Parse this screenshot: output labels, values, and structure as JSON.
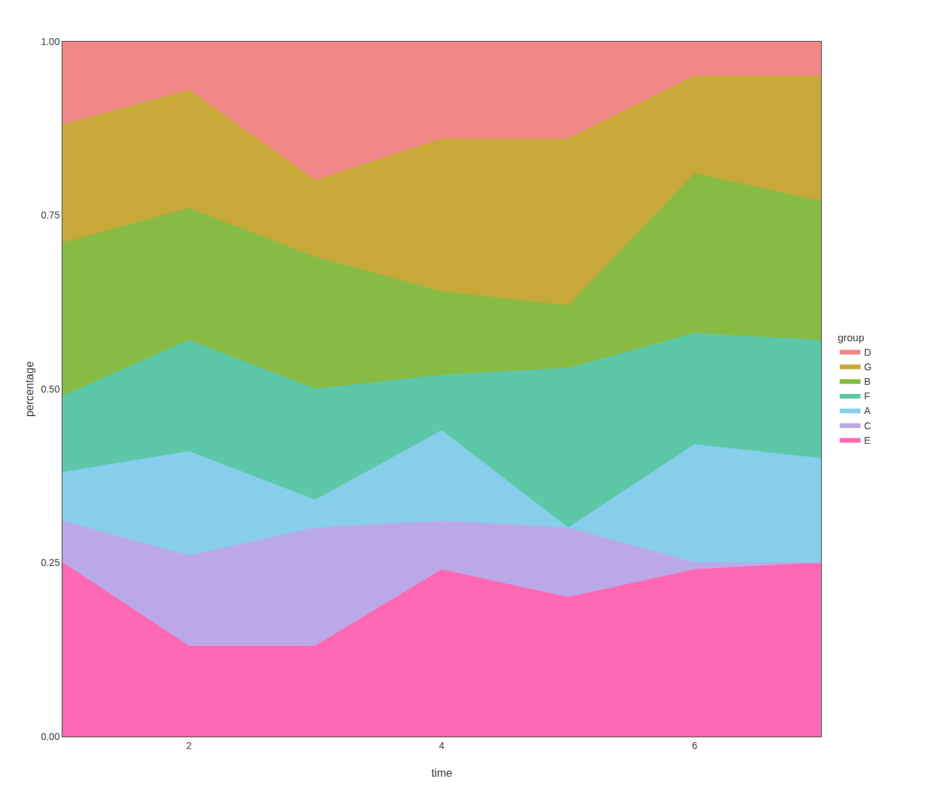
{
  "chart_data": {
    "type": "area",
    "stacked": true,
    "x_label": "time",
    "y_label": "percentage",
    "legend_title": "group",
    "x": [
      1,
      2,
      3,
      4,
      5,
      6,
      7
    ],
    "series": [
      {
        "name": "E",
        "color": "#FF69B4",
        "values": [
          0.25,
          0.13,
          0.13,
          0.24,
          0.2,
          0.24,
          0.25
        ]
      },
      {
        "name": "C",
        "color": "#BBA8E8",
        "values": [
          0.06,
          0.13,
          0.17,
          0.07,
          0.1,
          0.01,
          0.0
        ]
      },
      {
        "name": "A",
        "color": "#87CEEB",
        "values": [
          0.07,
          0.15,
          0.04,
          0.13,
          0.0,
          0.17,
          0.15
        ]
      },
      {
        "name": "F",
        "color": "#5DC8A8",
        "values": [
          0.11,
          0.16,
          0.16,
          0.08,
          0.23,
          0.16,
          0.17
        ]
      },
      {
        "name": "B",
        "color": "#88BB44",
        "values": [
          0.22,
          0.19,
          0.19,
          0.12,
          0.09,
          0.23,
          0.2
        ]
      },
      {
        "name": "G",
        "color": "#C8A838",
        "values": [
          0.17,
          0.17,
          0.11,
          0.22,
          0.24,
          0.14,
          0.18
        ]
      },
      {
        "name": "D",
        "color": "#F08888",
        "values": [
          0.12,
          0.07,
          0.2,
          0.14,
          0.14,
          0.05,
          0.05
        ]
      }
    ],
    "xlim": [
      1,
      7
    ],
    "xticks": [
      2,
      4,
      6
    ],
    "ylim": [
      0,
      1
    ],
    "yticks": [
      {
        "value": 0,
        "label": "0.00"
      },
      0.25,
      {
        "value": 0.5,
        "label": "0.50"
      },
      0.75,
      {
        "value": 1,
        "label": "1.00"
      }
    ],
    "grid": true,
    "legend": "right"
  }
}
